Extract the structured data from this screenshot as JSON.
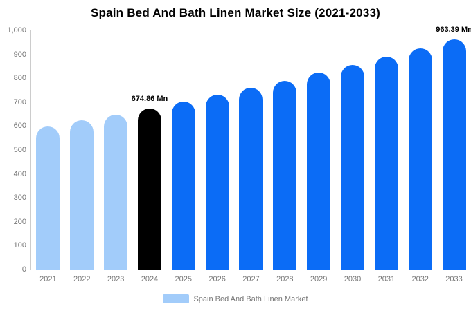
{
  "chart_data": {
    "type": "bar",
    "title": "Spain Bed And Bath Linen Market Size (2021-2033)",
    "categories": [
      "2021",
      "2022",
      "2023",
      "2024",
      "2025",
      "2026",
      "2027",
      "2028",
      "2029",
      "2030",
      "2031",
      "2032",
      "2033"
    ],
    "values": [
      599.35,
      623.53,
      648.69,
      674.86,
      702.09,
      730.42,
      759.9,
      790.56,
      822.46,
      855.65,
      890.18,
      926.11,
      963.39
    ],
    "unit": "Mn",
    "xlabel": "",
    "ylabel": "",
    "ylim": [
      0,
      1000
    ],
    "y_ticks": [
      {
        "value": 0,
        "label": "0"
      },
      {
        "value": 100,
        "label": "100"
      },
      {
        "value": 200,
        "label": "200"
      },
      {
        "value": 300,
        "label": "300"
      },
      {
        "value": 400,
        "label": "400"
      },
      {
        "value": 500,
        "label": "500"
      },
      {
        "value": 600,
        "label": "600"
      },
      {
        "value": 700,
        "label": "700"
      },
      {
        "value": 800,
        "label": "800"
      },
      {
        "value": 900,
        "label": "900"
      },
      {
        "value": 1000,
        "label": "1,000"
      }
    ],
    "grid": false,
    "legend_position": "bottom",
    "bar_color_keys": [
      "light",
      "light",
      "light",
      "dark",
      "primary",
      "primary",
      "primary",
      "primary",
      "primary",
      "primary",
      "primary",
      "primary",
      "primary"
    ],
    "annotations": [
      {
        "index": 3,
        "label": "674.86 Mn"
      },
      {
        "index": 12,
        "label": "963.39 Mn"
      }
    ]
  },
  "colors": {
    "light": "#a2ccfa",
    "dark": "#000000",
    "primary": "#0b6cf6",
    "axis": "#cccccc",
    "text_muted": "#757575",
    "title_text": "#000000"
  },
  "legend": {
    "label": "Spain Bed And Bath Linen Market"
  }
}
